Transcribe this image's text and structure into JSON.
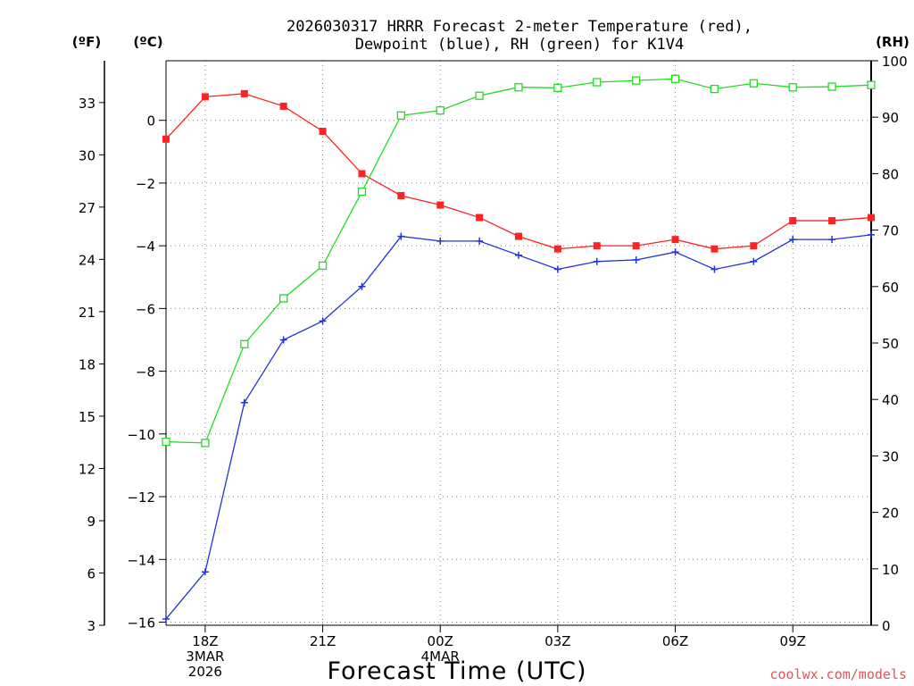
{
  "chart_data": {
    "type": "line",
    "title_line1": "2026030317 HRRR Forecast 2-meter Temperature (red),",
    "title_line2": "Dewpoint (blue), RH (green) for K1V4",
    "xlabel": "Forecast Time (UTC)",
    "unit_f": "(ºF)",
    "unit_c": "(ºC)",
    "unit_rh": "(RH)",
    "credit": "coolwx.com/models",
    "hours": [
      17,
      18,
      19,
      20,
      21,
      22,
      23,
      24,
      25,
      26,
      27,
      28,
      29,
      30,
      31,
      32,
      33,
      34,
      35
    ],
    "x_range": [
      17,
      35
    ],
    "c_range": [
      -16.1,
      1.9
    ],
    "rh_range": [
      0,
      100
    ],
    "f_range": [
      3,
      35.4
    ],
    "left_c_ticks": [
      0,
      -2,
      -4,
      -6,
      -8,
      -10,
      -12,
      -14,
      -16
    ],
    "left_c_tick_labels": [
      "0",
      "−2",
      "−4",
      "−6",
      "−8",
      "−10",
      "−12",
      "−14",
      "−16"
    ],
    "left_f_ticks": [
      33,
      30,
      27,
      24,
      21,
      18,
      15,
      12,
      9,
      6,
      3
    ],
    "left_f_tick_labels": [
      "33",
      "30",
      "27",
      "24",
      "21",
      "18",
      "15",
      "12",
      "9",
      "6",
      "3"
    ],
    "right_rh_ticks": [
      100,
      90,
      80,
      70,
      60,
      50,
      40,
      30,
      20,
      10,
      0
    ],
    "right_rh_tick_labels": [
      "100",
      "90",
      "80",
      "70",
      "60",
      "50",
      "40",
      "30",
      "20",
      "10",
      "0"
    ],
    "x_ticks": [
      {
        "hour": 18,
        "lines": [
          "18Z",
          "3MAR",
          "2026"
        ]
      },
      {
        "hour": 21,
        "lines": [
          "21Z"
        ]
      },
      {
        "hour": 24,
        "lines": [
          "00Z",
          "4MAR"
        ]
      },
      {
        "hour": 27,
        "lines": [
          "03Z"
        ]
      },
      {
        "hour": 30,
        "lines": [
          "06Z"
        ]
      },
      {
        "hour": 33,
        "lines": [
          "09Z"
        ]
      }
    ],
    "series": [
      {
        "name": "Temperature (°C)",
        "color": "#ff2222",
        "marker": "filled-square",
        "axis": "c",
        "values": [
          -0.6,
          0.75,
          0.85,
          0.45,
          -0.35,
          -1.7,
          -2.4,
          -2.7,
          -3.1,
          -3.7,
          -4.1,
          -4.0,
          -4.0,
          -3.8,
          -4.1,
          -4.0,
          -3.2,
          -3.2,
          -3.1
        ]
      },
      {
        "name": "Dewpoint (°C)",
        "color": "#2233dd",
        "marker": "plus",
        "axis": "c",
        "values": [
          -15.9,
          -14.4,
          -9.0,
          -7.0,
          -6.4,
          -5.3,
          -3.7,
          -3.85,
          -3.85,
          -4.3,
          -4.75,
          -4.5,
          -4.45,
          -4.2,
          -4.75,
          -4.5,
          -3.8,
          -3.8,
          -3.65
        ]
      },
      {
        "name": "RH (%)",
        "color": "#22dd22",
        "marker": "open-square",
        "axis": "rh",
        "values": [
          32.5,
          32.3,
          49.8,
          57.9,
          63.7,
          76.8,
          90.3,
          91.2,
          93.8,
          95.3,
          95.2,
          96.2,
          96.5,
          96.8,
          95.0,
          96.0,
          95.3,
          95.4,
          95.7
        ]
      }
    ]
  }
}
